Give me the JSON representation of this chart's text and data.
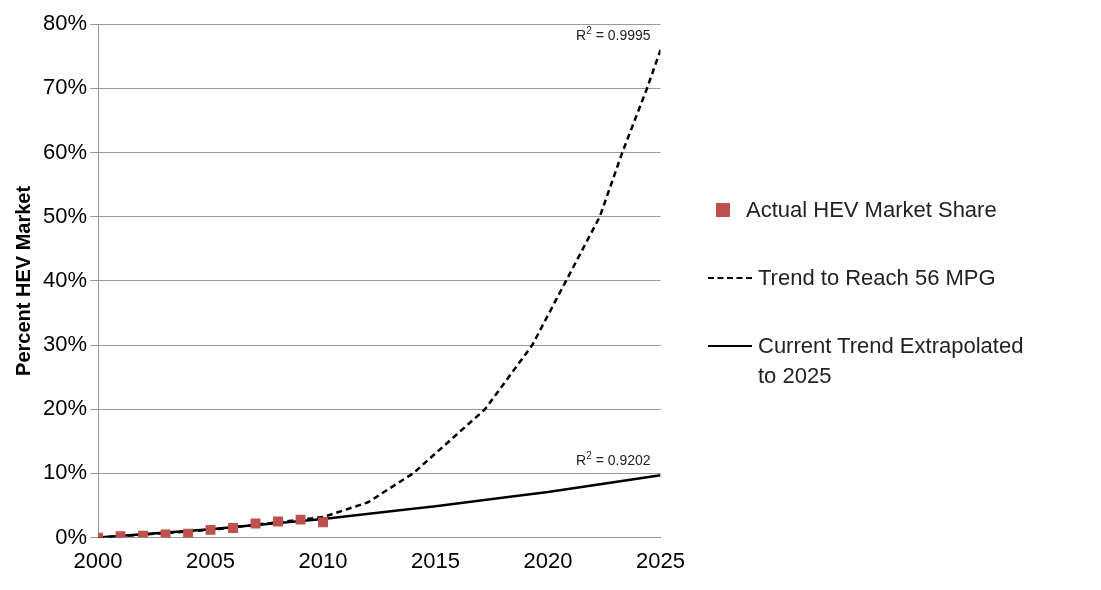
{
  "chart_data": {
    "type": "scatter",
    "ylabel": "Percent HEV Market",
    "xlim": [
      2000,
      2025
    ],
    "xticks": [
      2000,
      2005,
      2010,
      2015,
      2020,
      2025
    ],
    "ylim": [
      0,
      80
    ],
    "yticks": [
      {
        "value": 0,
        "label": "0%"
      },
      {
        "value": 10,
        "label": "10%"
      },
      {
        "value": 20,
        "label": "20%"
      },
      {
        "value": 30,
        "label": "30%"
      },
      {
        "value": 40,
        "label": "40%"
      },
      {
        "value": 50,
        "label": "50%"
      },
      {
        "value": 60,
        "label": "60%"
      },
      {
        "value": 70,
        "label": "70%"
      },
      {
        "value": 80,
        "label": "80%"
      }
    ],
    "grid": "y",
    "legend": "right",
    "series": [
      {
        "name": "Actual HEV Market Share",
        "marker": "square",
        "color": "#c0504d",
        "x": [
          2000,
          2001,
          2002,
          2003,
          2004,
          2005,
          2006,
          2007,
          2008,
          2009,
          2010
        ],
        "values": [
          0,
          0.2,
          0.3,
          0.5,
          0.6,
          1.2,
          1.5,
          2.2,
          2.5,
          2.8,
          2.4
        ]
      },
      {
        "name": "Trend to Reach 56 MPG",
        "type": "line",
        "marker": "none",
        "line_style": "dashed",
        "color": "#000000",
        "x": [
          2000,
          2005,
          2009,
          2010,
          2012,
          2014,
          2017.2,
          2019.3,
          2020.8,
          2022.3,
          2023.3,
          2024.4,
          2025
        ],
        "values": [
          0,
          1.2,
          2.8,
          3.2,
          5.5,
          10,
          20,
          30,
          40,
          50,
          60,
          70,
          76
        ]
      },
      {
        "name": "Current Trend Extrapolated to 2025",
        "type": "line",
        "marker": "none",
        "line_style": "solid",
        "color": "#000000",
        "x": [
          2000,
          2005,
          2010,
          2015,
          2020,
          2025
        ],
        "values": [
          0,
          1.3,
          2.9,
          4.9,
          7.1,
          9.7
        ]
      }
    ],
    "annotations": [
      {
        "text": "R$^{2}$ = 0.9995",
        "x": 2025,
        "y": 76
      },
      {
        "text": "R$^{2}$ = 0.9202",
        "x": 2025,
        "y": 9.7
      }
    ]
  }
}
